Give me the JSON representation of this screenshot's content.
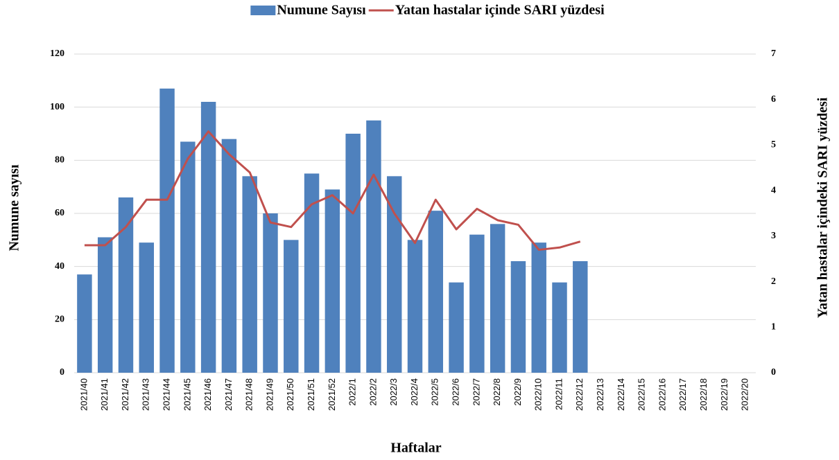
{
  "chart_data": {
    "type": "bar",
    "x_label": "Haftalar",
    "y_label": "Numune sayısı",
    "y2_label": "Yatan hastalar içindeki SARI yüzdesi",
    "categories": [
      "2021/40",
      "2021/41",
      "2021/42",
      "2021/43",
      "2021/44",
      "2021/45",
      "2021/46",
      "2021/47",
      "2021/48",
      "2021/49",
      "2021/50",
      "2021/51",
      "2021/52",
      "2022/1",
      "2022/2",
      "2022/3",
      "2022/4",
      "2022/5",
      "2022/6",
      "2022/7",
      "2022/8",
      "2022/9",
      "2022/10",
      "2022/11",
      "2022/12",
      "2022/13",
      "2022/14",
      "2022/15",
      "2022/16",
      "2022/17",
      "2022/18",
      "2022/19",
      "2022/20"
    ],
    "series": [
      {
        "name": "Numune Sayısı",
        "type": "bar",
        "color": "#4f81bd",
        "values": [
          37,
          51,
          66,
          49,
          107,
          87,
          102,
          88,
          74,
          60,
          50,
          75,
          69,
          90,
          95,
          74,
          50,
          61,
          34,
          52,
          56,
          42,
          49,
          34,
          42,
          null,
          null,
          null,
          null,
          null,
          null,
          null,
          null
        ]
      },
      {
        "name": "Yatan hastalar içinde SARI yüzdesi",
        "type": "line",
        "axis": "y2",
        "color": "#c0504d",
        "values": [
          2.8,
          2.8,
          3.2,
          3.8,
          3.8,
          4.7,
          5.3,
          4.8,
          4.4,
          3.3,
          3.2,
          3.7,
          3.9,
          3.5,
          4.35,
          3.5,
          2.85,
          3.8,
          3.15,
          3.6,
          3.35,
          3.25,
          2.7,
          2.75,
          2.88,
          null,
          null,
          null,
          null,
          null,
          null,
          null,
          null
        ]
      }
    ],
    "ylim": [
      0,
      120
    ],
    "yticks": [
      0,
      20,
      40,
      60,
      80,
      100,
      120
    ],
    "y2lim": [
      0,
      7
    ],
    "y2ticks": [
      0,
      1,
      2,
      3,
      4,
      5,
      6,
      7
    ],
    "grid": true,
    "legend": "top"
  }
}
